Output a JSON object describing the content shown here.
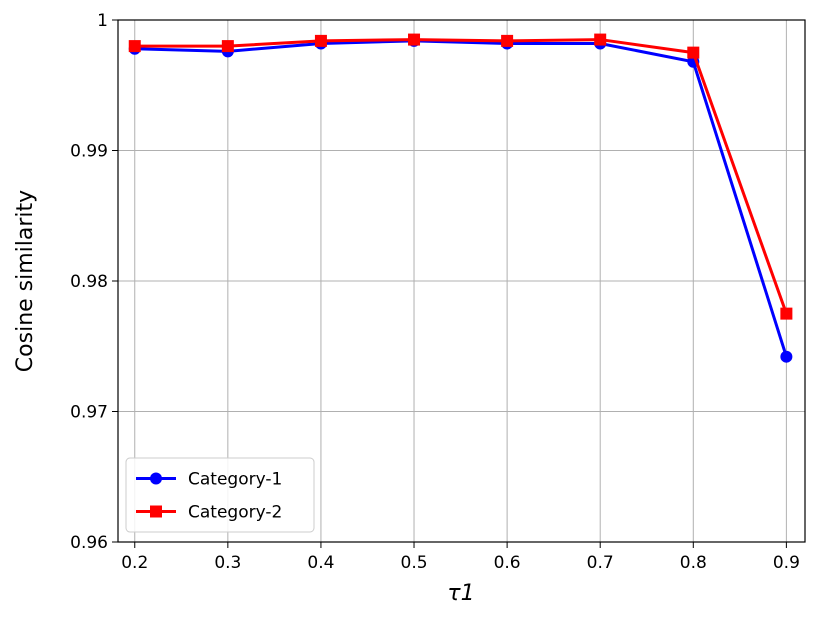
{
  "chart_data": {
    "type": "line",
    "x_label": "τ1",
    "y_label": "Cosine similarity",
    "x": [
      0.2,
      0.3,
      0.4,
      0.5,
      0.6,
      0.7,
      0.8,
      0.9
    ],
    "series": [
      {
        "name": "Category-1",
        "color": "#0000ff",
        "marker": "circle",
        "values": [
          0.9978,
          0.9976,
          0.9982,
          0.9984,
          0.9982,
          0.9982,
          0.9968,
          0.9742
        ]
      },
      {
        "name": "Category-2",
        "color": "#ff0000",
        "marker": "square",
        "values": [
          0.998,
          0.998,
          0.9984,
          0.9985,
          0.9984,
          0.9985,
          0.9975,
          0.9775
        ]
      }
    ],
    "xlim": [
      0.182,
      0.92
    ],
    "xticks": [
      0.2,
      0.3,
      0.4,
      0.5,
      0.6,
      0.7,
      0.8,
      0.9
    ],
    "ylim": [
      0.96,
      1
    ],
    "yticks": [
      0.96,
      0.97,
      0.98,
      0.99,
      1
    ],
    "grid": true,
    "legend": "lower left"
  }
}
